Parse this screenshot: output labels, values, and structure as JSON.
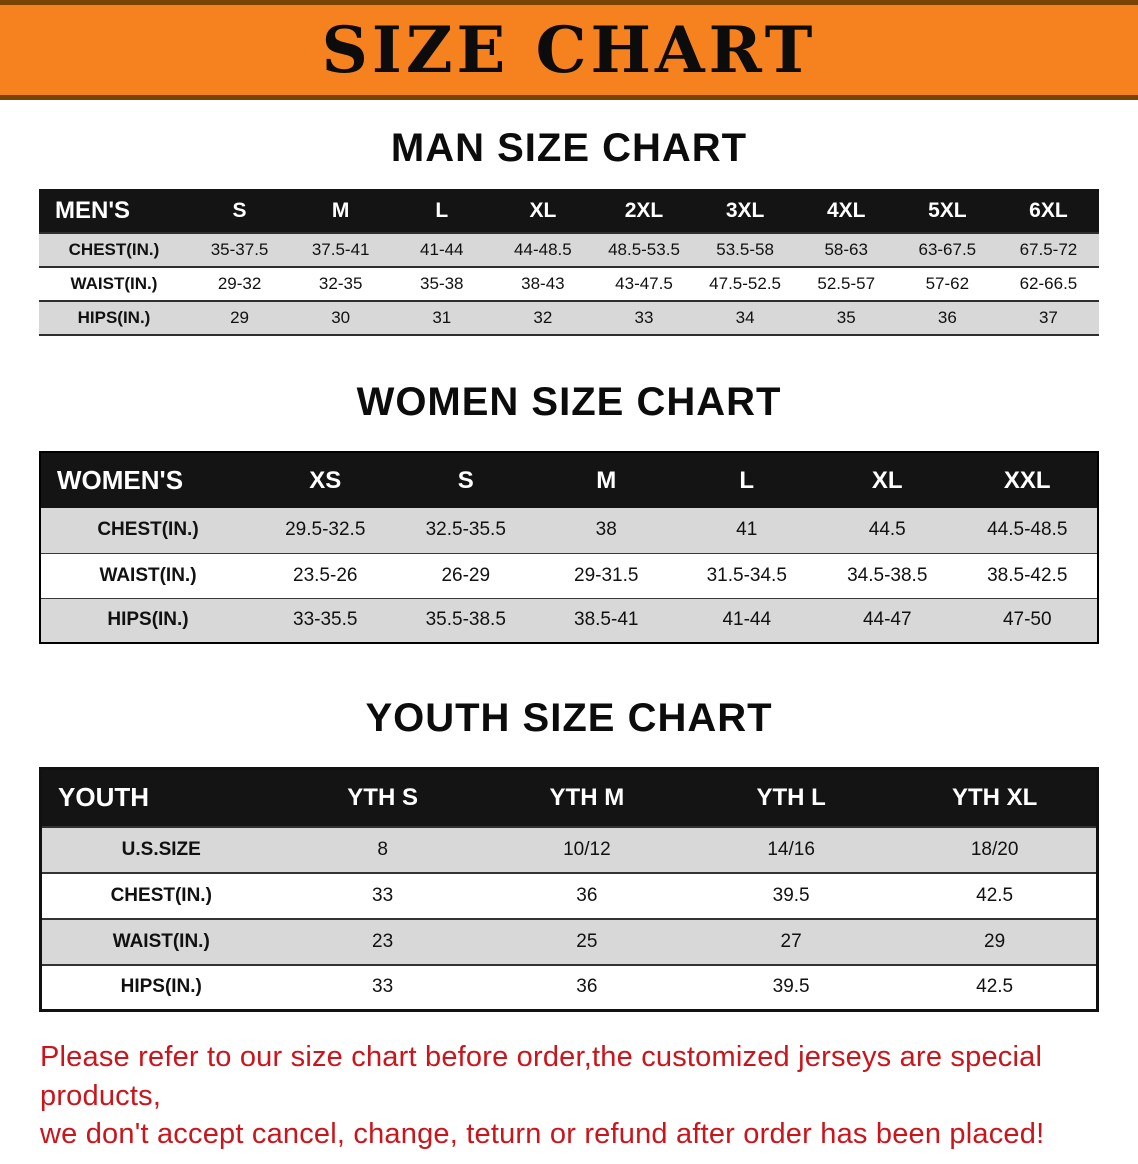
{
  "banner": {
    "title": "SIZE CHART"
  },
  "colors": {
    "banner_bg": "#f5821f",
    "banner_edge": "#7b4206",
    "header_row_bg": "#141414",
    "header_row_text": "#ffffff",
    "stripe_bg": "#d8d8d8",
    "text": "#111111",
    "footer_text": "#c9151b"
  },
  "chart_data": [
    {
      "type": "table",
      "title": "MAN SIZE CHART",
      "header": [
        "MEN'S",
        "S",
        "M",
        "L",
        "XL",
        "2XL",
        "3XL",
        "4XL",
        "5XL",
        "6XL"
      ],
      "rows": [
        [
          "CHEST(IN.)",
          "35-37.5",
          "37.5-41",
          "41-44",
          "44-48.5",
          "48.5-53.5",
          "53.5-58",
          "58-63",
          "63-67.5",
          "67.5-72"
        ],
        [
          "WAIST(IN.)",
          "29-32",
          "32-35",
          "35-38",
          "38-43",
          "43-47.5",
          "47.5-52.5",
          "52.5-57",
          "57-62",
          "62-66.5"
        ],
        [
          "HIPS(IN.)",
          "29",
          "30",
          "31",
          "32",
          "33",
          "34",
          "35",
          "36",
          "37"
        ]
      ]
    },
    {
      "type": "table",
      "title": "WOMEN SIZE CHART",
      "header": [
        "WOMEN'S",
        "XS",
        "S",
        "M",
        "L",
        "XL",
        "XXL"
      ],
      "rows": [
        [
          "CHEST(IN.)",
          "29.5-32.5",
          "32.5-35.5",
          "38",
          "41",
          "44.5",
          "44.5-48.5"
        ],
        [
          "WAIST(IN.)",
          "23.5-26",
          "26-29",
          "29-31.5",
          "31.5-34.5",
          "34.5-38.5",
          "38.5-42.5"
        ],
        [
          "HIPS(IN.)",
          "33-35.5",
          "35.5-38.5",
          "38.5-41",
          "41-44",
          "44-47",
          "47-50"
        ]
      ]
    },
    {
      "type": "table",
      "title": "YOUTH SIZE CHART",
      "header": [
        "YOUTH",
        "YTH S",
        "YTH M",
        "YTH L",
        "YTH XL"
      ],
      "rows": [
        [
          "U.S.SIZE",
          "8",
          "10/12",
          "14/16",
          "18/20"
        ],
        [
          "CHEST(IN.)",
          "33",
          "36",
          "39.5",
          "42.5"
        ],
        [
          "WAIST(IN.)",
          "23",
          "25",
          "27",
          "29"
        ],
        [
          "HIPS(IN.)",
          "33",
          "36",
          "39.5",
          "42.5"
        ]
      ]
    }
  ],
  "footer": {
    "lines": [
      "Please refer to our size chart before order,the customized jerseys are special products,",
      "we don't accept cancel, change, teturn or refund after order has been placed!"
    ]
  }
}
